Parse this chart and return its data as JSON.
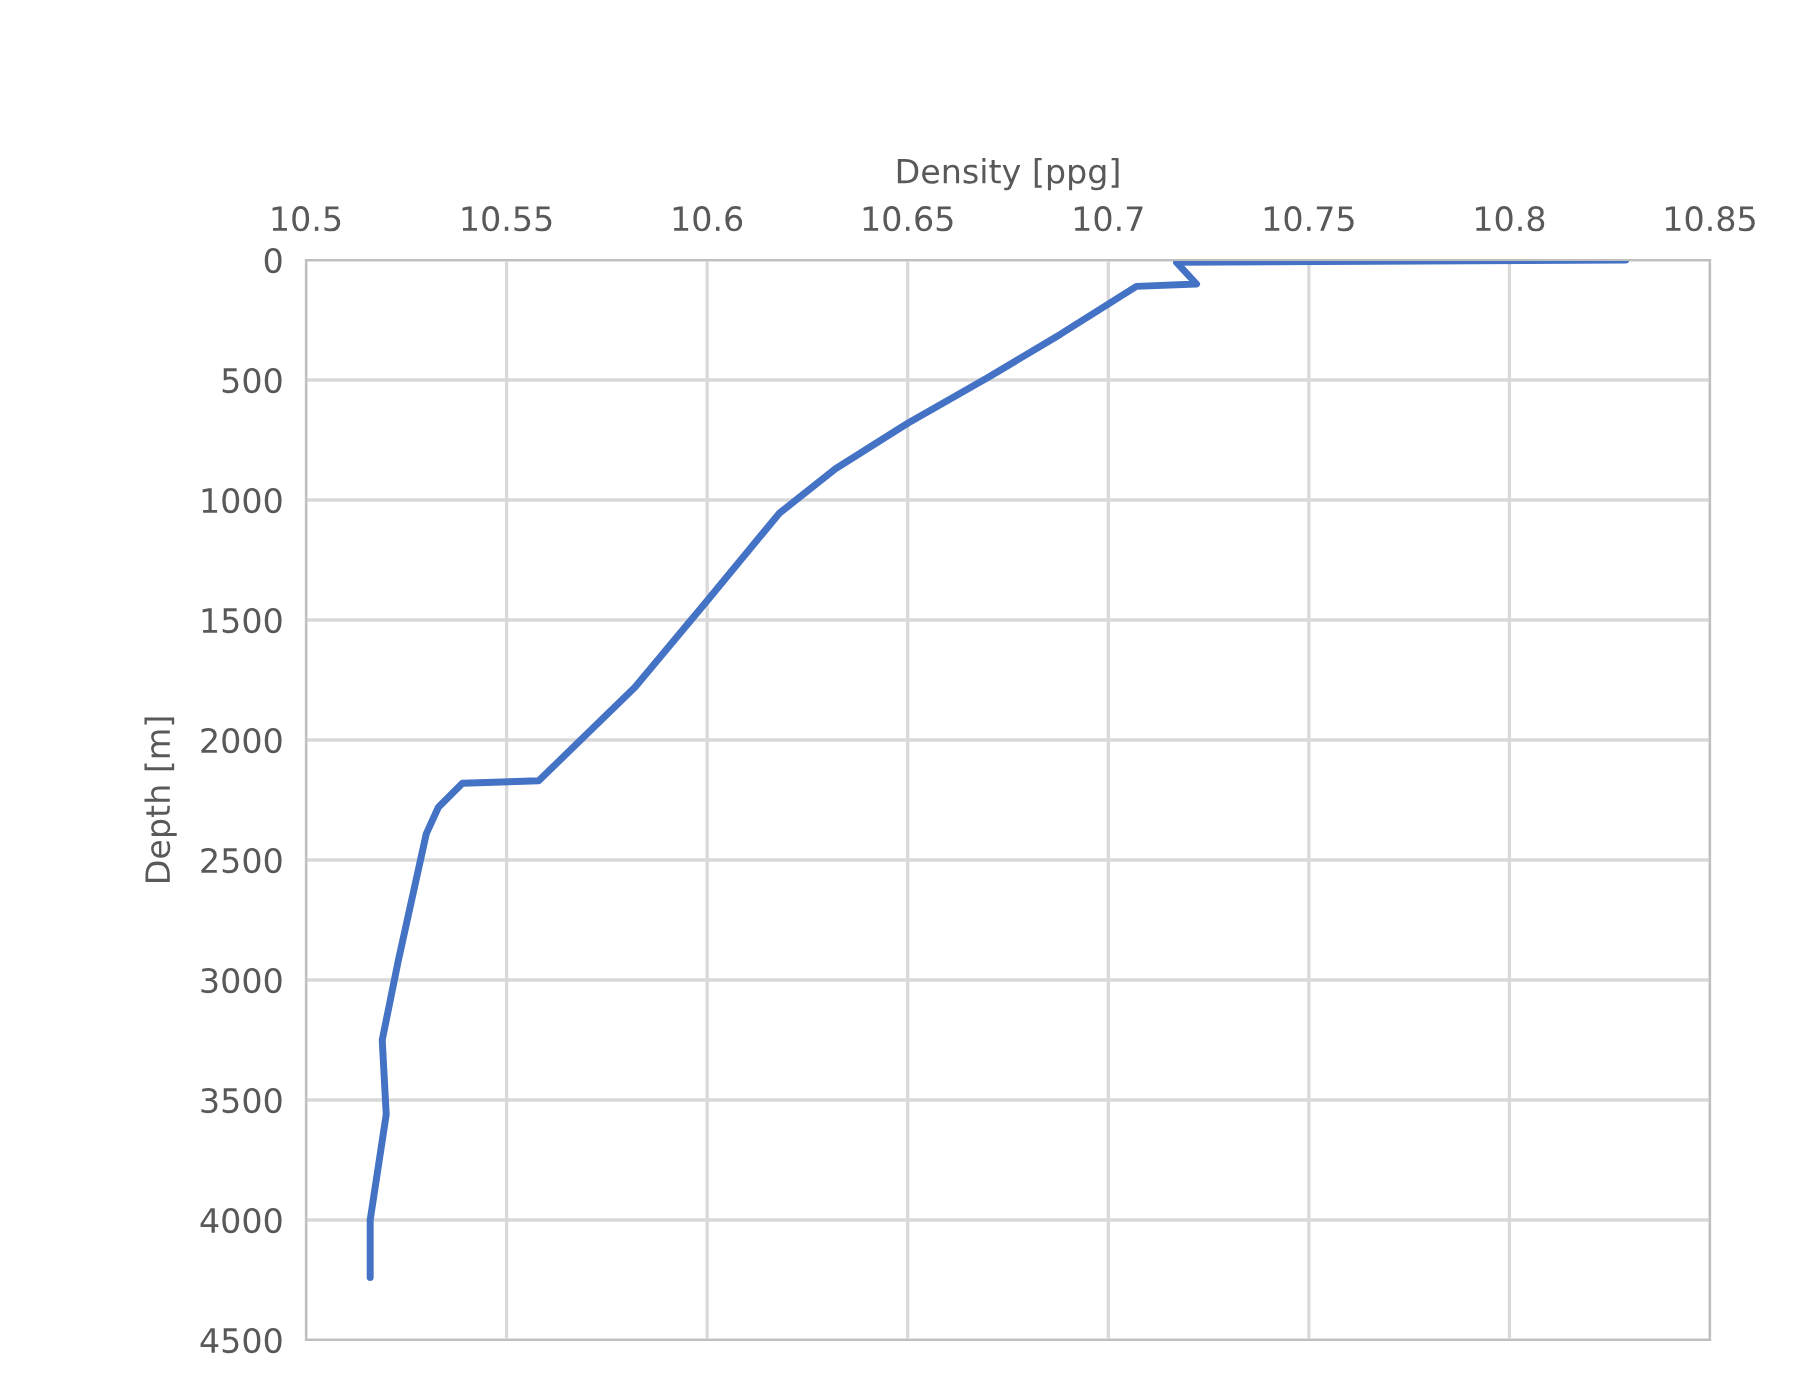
{
  "chart_data": {
    "type": "line",
    "xlabel": "Density [ppg]",
    "ylabel": "Depth [m]",
    "series": [
      {
        "color": "#4472c4",
        "x": [
          10.829,
          10.717,
          10.722,
          10.707,
          10.688,
          10.67,
          10.65,
          10.632,
          10.618,
          10.6,
          10.582,
          10.558,
          10.539,
          10.533,
          10.53,
          10.523,
          10.519,
          10.52,
          10.518,
          10.516,
          10.516
        ],
        "values": [
          0,
          10,
          100,
          110,
          310,
          490,
          680,
          870,
          1055,
          1420,
          1780,
          2170,
          2180,
          2280,
          2390,
          2920,
          3250,
          3560,
          3780,
          4000,
          4240
        ]
      }
    ],
    "xlim": [
      10.5,
      10.85
    ],
    "xticks": [
      10.5,
      10.55,
      10.6,
      10.65,
      10.7,
      10.75,
      10.8,
      10.85
    ],
    "ylim": [
      4500,
      0
    ],
    "yticks": [
      0,
      500,
      1000,
      1500,
      2000,
      2500,
      3000,
      3500,
      4000,
      4500
    ],
    "grid": true,
    "marker": "none",
    "line_style": "solid",
    "legend": false
  }
}
